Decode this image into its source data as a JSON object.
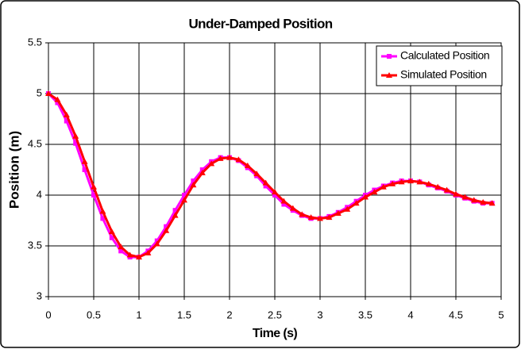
{
  "chart_data": {
    "type": "line",
    "title": "Under-Damped Position",
    "x_label": "Time (s)",
    "y_label": "Position (m)",
    "x": [
      0,
      0.1,
      0.2,
      0.3,
      0.4,
      0.5,
      0.6,
      0.7,
      0.8,
      0.9,
      1.0,
      1.1,
      1.2,
      1.3,
      1.4,
      1.5,
      1.6,
      1.7,
      1.8,
      1.9,
      2.0,
      2.1,
      2.2,
      2.3,
      2.4,
      2.5,
      2.6,
      2.7,
      2.8,
      2.9,
      3.0,
      3.1,
      3.2,
      3.3,
      3.4,
      3.5,
      3.6,
      3.7,
      3.8,
      3.9,
      4.0,
      4.1,
      4.2,
      4.3,
      4.4,
      4.5,
      4.6,
      4.7,
      4.8,
      4.9
    ],
    "series": [
      {
        "name": "Calculated Position",
        "color": "#ff00ff",
        "marker": "square",
        "values": [
          5.0,
          4.91,
          4.73,
          4.51,
          4.25,
          4.0,
          3.77,
          3.58,
          3.45,
          3.39,
          3.39,
          3.45,
          3.55,
          3.69,
          3.85,
          4.0,
          4.14,
          4.25,
          4.33,
          4.37,
          4.37,
          4.34,
          4.27,
          4.19,
          4.09,
          4.0,
          3.91,
          3.85,
          3.8,
          3.77,
          3.77,
          3.79,
          3.83,
          3.88,
          3.94,
          4.0,
          4.05,
          4.09,
          4.12,
          4.14,
          4.14,
          4.13,
          4.1,
          4.07,
          4.04,
          4.0,
          3.97,
          3.94,
          3.92,
          3.92
        ]
      },
      {
        "name": "Simulated Position",
        "color": "#ff0000",
        "marker": "triangle",
        "values": [
          5.0,
          4.94,
          4.79,
          4.58,
          4.33,
          4.08,
          3.84,
          3.64,
          3.49,
          3.41,
          3.39,
          3.43,
          3.52,
          3.65,
          3.8,
          3.95,
          4.1,
          4.22,
          4.31,
          4.36,
          4.37,
          4.35,
          4.29,
          4.21,
          4.12,
          4.03,
          3.94,
          3.87,
          3.81,
          3.78,
          3.77,
          3.78,
          3.82,
          3.86,
          3.92,
          3.98,
          4.03,
          4.08,
          4.11,
          4.13,
          4.14,
          4.13,
          4.11,
          4.08,
          4.05,
          4.01,
          3.98,
          3.95,
          3.93,
          3.92
        ]
      }
    ],
    "xlim": [
      0,
      5
    ],
    "xticks": [
      0,
      0.5,
      1,
      1.5,
      2,
      2.5,
      3,
      3.5,
      4,
      4.5,
      5
    ],
    "ylim": [
      3,
      5.5
    ],
    "yticks": [
      3,
      3.5,
      4,
      4.5,
      5,
      5.5
    ],
    "grid": true,
    "legend": "top-right"
  }
}
